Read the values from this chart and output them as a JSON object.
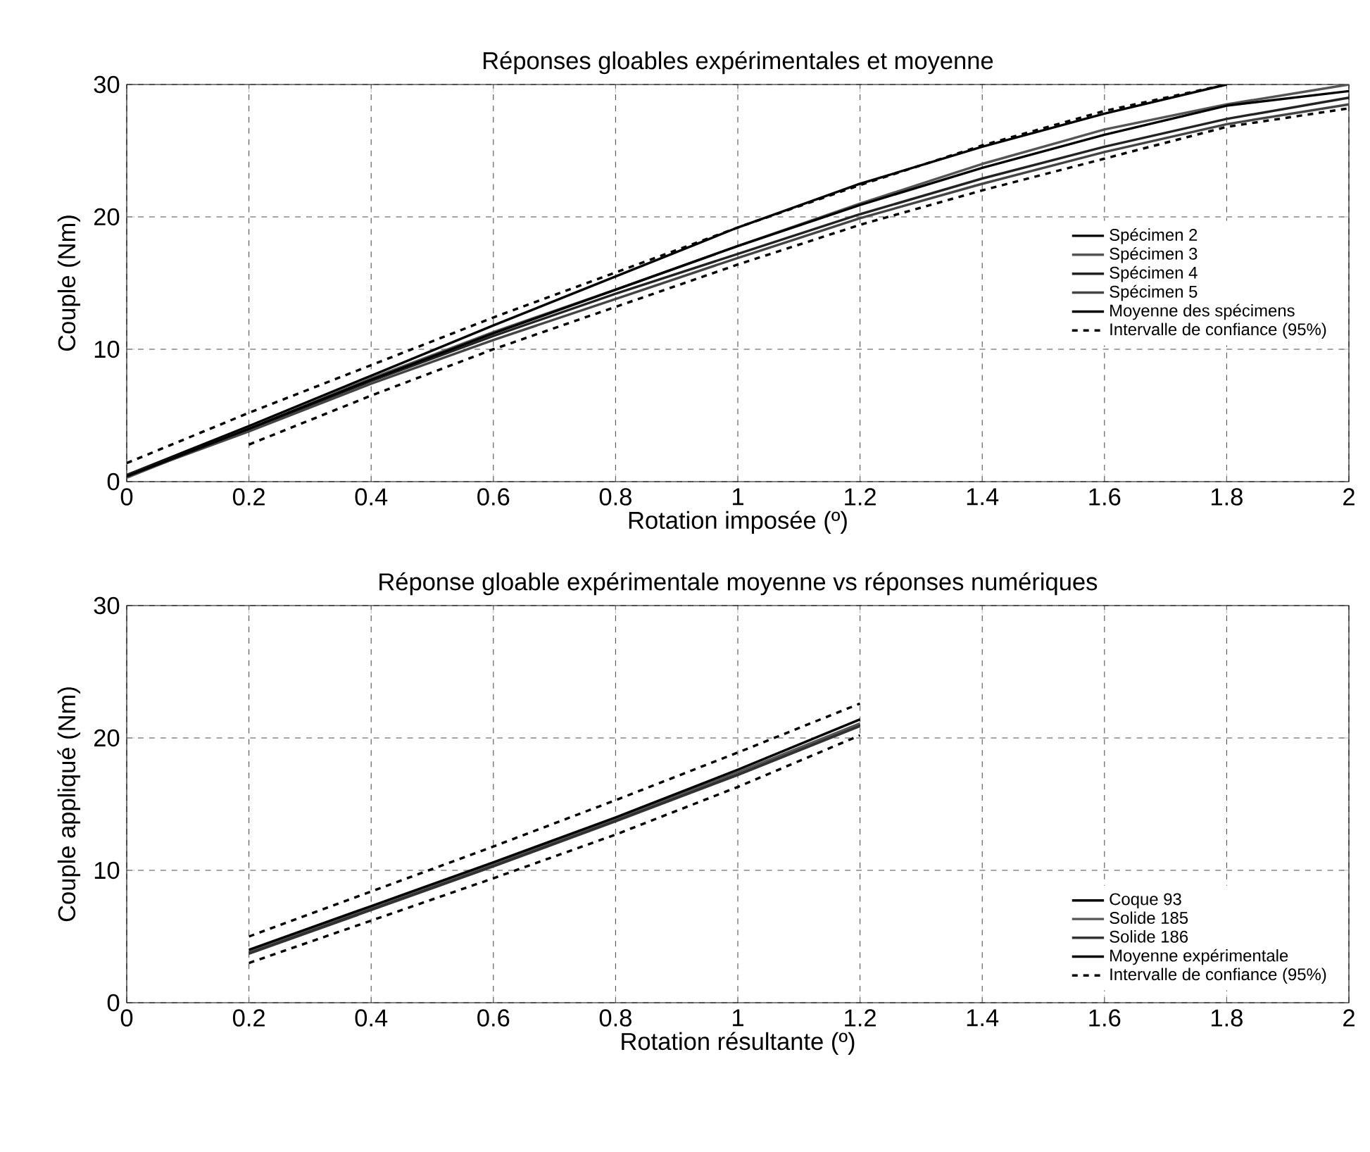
{
  "chart_data": [
    {
      "type": "line",
      "title": "Réponses gloables expérimentales et moyenne",
      "xlabel": "Rotation imposée (º)",
      "ylabel": "Couple (Nm)",
      "x": [
        0,
        0.2,
        0.4,
        0.6,
        0.8,
        1.0,
        1.2,
        1.4,
        1.6,
        1.8,
        2.0
      ],
      "series": [
        {
          "name": "Spécimen 2",
          "color": "#000000",
          "line_style": "solid",
          "values": [
            0.5,
            4.2,
            8.0,
            11.8,
            15.5,
            19.2,
            22.5,
            25.3,
            27.8,
            30,
            null
          ]
        },
        {
          "name": "Spécimen 3",
          "color": "#555555",
          "line_style": "solid",
          "values": [
            0.3,
            4.0,
            7.8,
            11.3,
            14.5,
            17.8,
            21.0,
            24.0,
            26.6,
            28.5,
            30
          ]
        },
        {
          "name": "Spécimen 4",
          "color": "#222222",
          "line_style": "solid",
          "values": [
            0.5,
            3.9,
            7.6,
            11.0,
            14.2,
            17.2,
            20.2,
            22.9,
            25.3,
            27.4,
            29
          ]
        },
        {
          "name": "Spécimen 5",
          "color": "#444444",
          "line_style": "solid",
          "values": [
            0.4,
            3.8,
            7.4,
            10.7,
            13.8,
            16.9,
            19.9,
            22.5,
            24.9,
            27.0,
            28.5
          ]
        },
        {
          "name": "Moyenne des spécimens",
          "color": "#000000",
          "line_style": "solid",
          "values": [
            0.4,
            4.0,
            7.7,
            11.2,
            14.5,
            17.8,
            20.9,
            23.7,
            26.2,
            28.4,
            29.5
          ]
        },
        {
          "name": "Intervalle de confiance (95%)",
          "color": "#000000",
          "line_style": "dashed",
          "values": [
            1.4,
            5.2,
            8.8,
            12.4,
            15.8,
            19.2,
            22.4,
            25.4,
            28.0,
            30,
            null
          ]
        },
        {
          "color": "#000000",
          "line_style": "dashed",
          "values": [
            null,
            2.8,
            6.5,
            10.0,
            13.2,
            16.4,
            19.4,
            22.0,
            24.4,
            26.8,
            28.2
          ]
        }
      ],
      "xlim": [
        0,
        2
      ],
      "ylim": [
        0,
        30
      ],
      "xticks": [
        0,
        0.2,
        0.4,
        0.6,
        0.8,
        1,
        1.2,
        1.4,
        1.6,
        1.8,
        2
      ],
      "yticks": [
        0,
        10,
        20,
        30
      ],
      "grid": true,
      "legend": "right"
    },
    {
      "type": "line",
      "title": "Réponse gloable expérimentale moyenne vs réponses numériques",
      "xlabel": "Rotation résultante (º)",
      "ylabel": "Couple appliqué (Nm)",
      "x": [
        0.2,
        0.4,
        0.6,
        0.8,
        1.0,
        1.2
      ],
      "series": [
        {
          "name": "Coque 93",
          "color": "#000000",
          "line_style": "solid",
          "values": [
            3.8,
            7.1,
            10.4,
            13.8,
            17.3,
            21.0
          ]
        },
        {
          "name": "Solide 185",
          "color": "#555555",
          "line_style": "solid",
          "values": [
            3.9,
            7.2,
            10.5,
            13.9,
            17.4,
            21.1
          ]
        },
        {
          "name": "Solide 186",
          "color": "#333333",
          "line_style": "solid",
          "values": [
            3.7,
            7.0,
            10.3,
            13.7,
            17.2,
            20.9
          ]
        },
        {
          "name": "Moyenne expérimentale",
          "color": "#000000",
          "line_style": "solid",
          "values": [
            4.0,
            7.3,
            10.6,
            14.0,
            17.6,
            21.4
          ]
        },
        {
          "name": "Intervalle de confiance (95%)",
          "color": "#000000",
          "line_style": "dashed",
          "values": [
            5.0,
            8.4,
            11.8,
            15.3,
            18.9,
            22.6
          ]
        },
        {
          "color": "#000000",
          "line_style": "dashed",
          "values": [
            3.0,
            6.2,
            9.4,
            12.7,
            16.3,
            20.2
          ]
        }
      ],
      "xlim": [
        0,
        2
      ],
      "ylim": [
        0,
        30
      ],
      "xticks": [
        0,
        0.2,
        0.4,
        0.6,
        0.8,
        1,
        1.2,
        1.4,
        1.6,
        1.8,
        2
      ],
      "yticks": [
        0,
        10,
        20,
        30
      ],
      "grid": true,
      "legend": "bottom right"
    }
  ]
}
